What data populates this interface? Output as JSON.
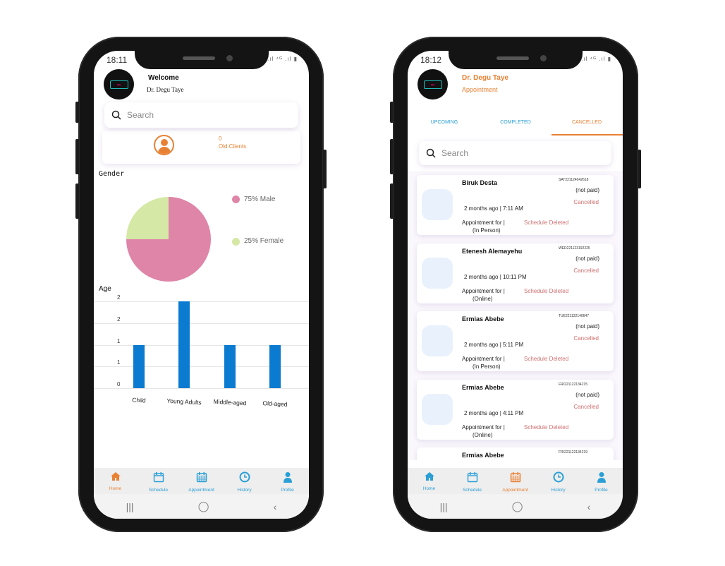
{
  "colors": {
    "accent_orange": "#e98134",
    "accent_blue": "#2a9fd6",
    "bar_blue": "#0a7bd0",
    "pie_male": "#df85a8",
    "pie_female": "#d5e8a6",
    "cancel_red": "#d07070"
  },
  "home": {
    "status_time": "18:11",
    "welcome": "Welcome",
    "doctor_name": "Dr. Degu Taye",
    "search_placeholder": "Search",
    "old_clients_count": "0",
    "old_clients_label": "Old Clients",
    "gender_title": "Gender",
    "age_title": "Age"
  },
  "chart_data": [
    {
      "type": "pie",
      "title": "Gender",
      "slices": [
        {
          "label": "75% Male",
          "value": 75,
          "color": "#df85a8"
        },
        {
          "label": "25% Female",
          "value": 25,
          "color": "#d5e8a6"
        }
      ],
      "legend": "right"
    },
    {
      "type": "bar",
      "title": "Age",
      "categories": [
        "Child",
        "Young Adults",
        "Middle-aged",
        "Old-aged"
      ],
      "values": [
        1,
        2,
        1,
        1
      ],
      "ylim": [
        0,
        2
      ],
      "yticks": [
        "0",
        "1",
        "1",
        "2",
        "2"
      ],
      "grid": true
    }
  ],
  "appointments": {
    "status_time": "18:12",
    "doctor_name": "Dr. Degu Taye",
    "subtitle": "Appointment",
    "tabs": [
      {
        "label": "UPCOMING"
      },
      {
        "label": "COMPLETED"
      },
      {
        "label": "CANCELLED",
        "active": true
      }
    ],
    "search_placeholder": "Search",
    "items": [
      {
        "name": "Biruk Desta",
        "id": "SAT221124042618",
        "payment": "(not paid)",
        "status": "Cancelled",
        "time": "2 months ago | 7:11 AM",
        "for": "Appointment for  |",
        "mode": "(In Person)",
        "note": "Schedule Deleted"
      },
      {
        "name": "Etenesh Alemayehu",
        "id": "WED221123192225",
        "payment": "(not paid)",
        "status": "Cancelled",
        "time": "2 months ago | 10:11 PM",
        "for": "Appointment for  |",
        "mode": "(Online)",
        "note": "Schedule Deleted"
      },
      {
        "name": "Ermias Abebe",
        "id": "TUE221122140647",
        "payment": "(not paid)",
        "status": "Cancelled",
        "time": "2 months ago | 5:11 PM",
        "for": "Appointment for  |",
        "mode": "(In Person)",
        "note": "Schedule Deleted"
      },
      {
        "name": "Ermias Abebe",
        "id": "FRI221122134215",
        "payment": "(not paid)",
        "status": "Cancelled",
        "time": "2 months ago | 4:11 PM",
        "for": "Appointment for  |",
        "mode": "(Online)",
        "note": "Schedule Deleted"
      },
      {
        "name": "Ermias Abebe",
        "id": "FRI221122134219"
      }
    ]
  },
  "nav": {
    "items": [
      {
        "label": "Home",
        "icon": "home-icon"
      },
      {
        "label": "Schedule",
        "icon": "calendar-icon"
      },
      {
        "label": "Appointment",
        "icon": "calendar-grid-icon"
      },
      {
        "label": "History",
        "icon": "clock-icon"
      },
      {
        "label": "Profile",
        "icon": "person-icon"
      }
    ]
  }
}
